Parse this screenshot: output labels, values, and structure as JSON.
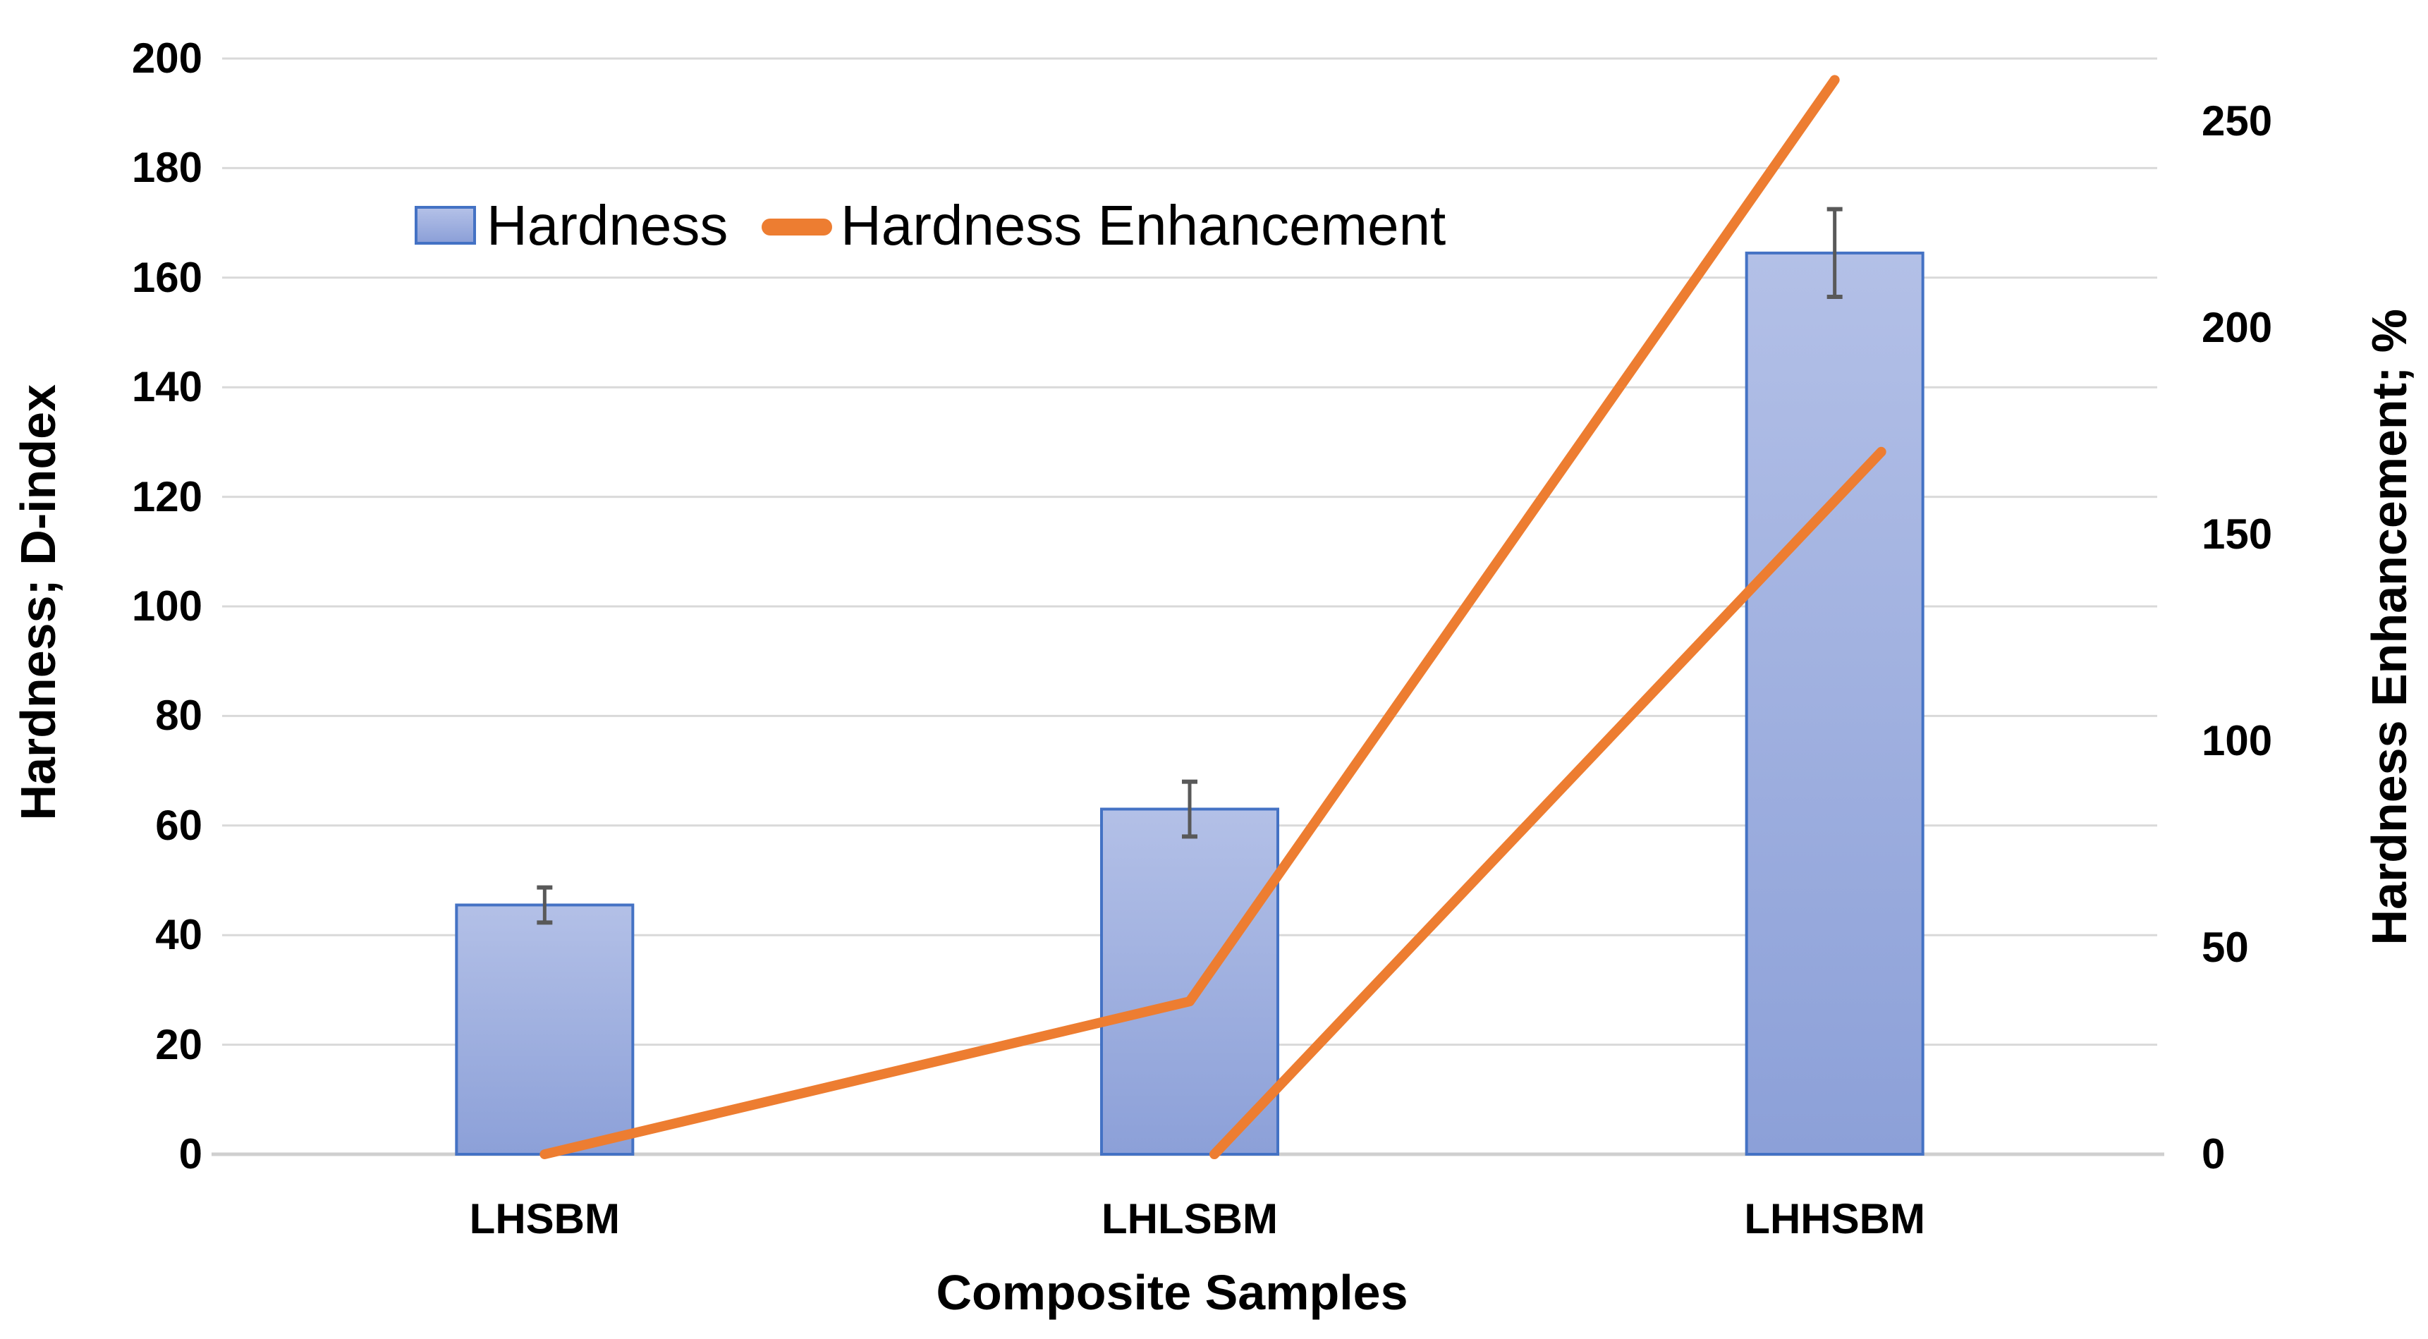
{
  "chart_data": {
    "type": "combo-bar-line",
    "title": "",
    "categories": [
      "LHSBM",
      "LHLSBM",
      "LHHSBM"
    ],
    "bar_series": {
      "name": "Hardness",
      "axis": "left",
      "values": [
        45.5,
        63,
        164.5
      ],
      "errors": [
        3.2,
        5,
        8
      ],
      "fill_top": "#B3C0E7",
      "fill_bottom": "#8CA0D8",
      "border_color": "#4472C4"
    },
    "line_series": {
      "name": "Hardness Enhancement",
      "axis": "right",
      "color": "#ED7D31",
      "segments": [
        {
          "points": [
            {
              "category": "LHSBM",
              "value": 0
            },
            {
              "category": "LHLSBM",
              "value": 37
            },
            {
              "category": "LHHSBM",
              "value": 260
            }
          ]
        },
        {
          "points": [
            {
              "category": "LHLSBM",
              "value": 0
            },
            {
              "category": "LHHSBM",
              "value": 170
            }
          ]
        }
      ]
    },
    "left_axis": {
      "title": "Hardness; D-index",
      "min": 0,
      "max": 200,
      "tick_step": 20,
      "ticks": [
        0,
        20,
        40,
        60,
        80,
        100,
        120,
        140,
        160,
        180,
        200
      ]
    },
    "right_axis": {
      "title": "Hardness Enhancement; %",
      "min": 0,
      "ticks": [
        0,
        50,
        100,
        150,
        200,
        250
      ]
    },
    "x_axis": {
      "title": "Composite Samples"
    },
    "legend": [
      {
        "label": "Hardness",
        "swatch": "bar"
      },
      {
        "label": "Hardness Enhancement",
        "swatch": "line"
      }
    ],
    "grid": true,
    "legend_position": "top",
    "gridline_color": "#D9D9D9",
    "axisline_color": "#CFCFCF",
    "error_bar_color": "#595959",
    "background_color": "#FFFFFF"
  }
}
